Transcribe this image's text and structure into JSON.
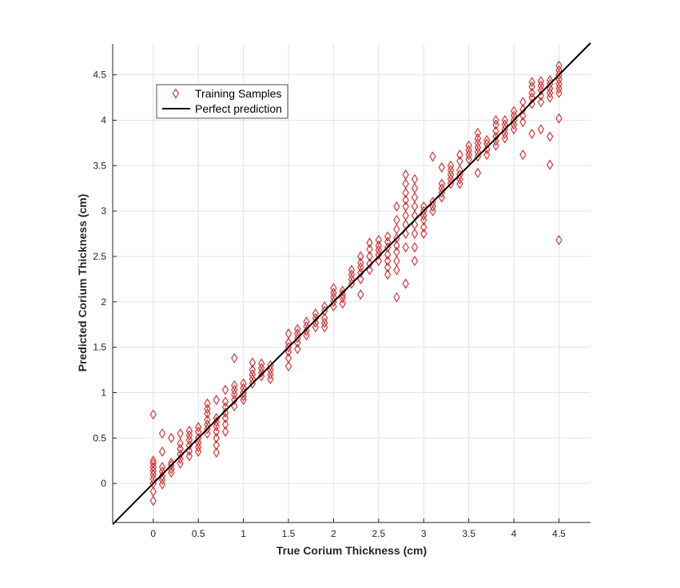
{
  "chart_data": {
    "type": "scatter",
    "title": "",
    "xlabel": "True Corium Thickness (cm)",
    "ylabel": "Predicted Corium Thickness (cm)",
    "xlim": [
      -0.45,
      4.85
    ],
    "ylim": [
      -0.43,
      4.84
    ],
    "xticks": [
      0,
      0.5,
      1,
      1.5,
      2,
      2.5,
      3,
      3.5,
      4,
      4.5
    ],
    "yticks": [
      0,
      0.5,
      1,
      1.5,
      2,
      2.5,
      3,
      3.5,
      4,
      4.5
    ],
    "xtick_labels": [
      "0",
      "0.5",
      "1",
      "1.5",
      "2",
      "2.5",
      "3",
      "3.5",
      "4",
      "4.5"
    ],
    "ytick_labels": [
      "0",
      "0.5",
      "1",
      "1.5",
      "2",
      "2.5",
      "3",
      "3.5",
      "4",
      "4.5"
    ],
    "grid": true,
    "legend_position": "top-left",
    "colors": {
      "samples": "#d62728",
      "line": "#000000",
      "grid": "#e3e3e3",
      "axis": "#262626"
    },
    "series": [
      {
        "name": "Training Samples",
        "marker": "diamond",
        "points": [
          [
            0,
            -0.19
          ],
          [
            0,
            -0.09
          ],
          [
            0,
            0
          ],
          [
            0,
            0.05
          ],
          [
            0,
            0.1
          ],
          [
            0,
            0.14
          ],
          [
            0,
            0.18
          ],
          [
            0,
            0.22
          ],
          [
            0,
            0.25
          ],
          [
            0,
            0.76
          ],
          [
            0.1,
            -0.01
          ],
          [
            0.1,
            0.04
          ],
          [
            0.1,
            0.08
          ],
          [
            0.1,
            0.13
          ],
          [
            0.1,
            0.18
          ],
          [
            0.1,
            0.35
          ],
          [
            0.1,
            0.55
          ],
          [
            0.2,
            0.12
          ],
          [
            0.2,
            0.16
          ],
          [
            0.2,
            0.2
          ],
          [
            0.2,
            0.23
          ],
          [
            0.2,
            0.5
          ],
          [
            0.3,
            0.22
          ],
          [
            0.3,
            0.27
          ],
          [
            0.3,
            0.32
          ],
          [
            0.3,
            0.38
          ],
          [
            0.3,
            0.44
          ],
          [
            0.3,
            0.55
          ],
          [
            0.4,
            0.3
          ],
          [
            0.4,
            0.36
          ],
          [
            0.4,
            0.42
          ],
          [
            0.4,
            0.48
          ],
          [
            0.4,
            0.53
          ],
          [
            0.4,
            0.58
          ],
          [
            0.5,
            0.35
          ],
          [
            0.5,
            0.4
          ],
          [
            0.5,
            0.45
          ],
          [
            0.5,
            0.5
          ],
          [
            0.5,
            0.57
          ],
          [
            0.5,
            0.62
          ],
          [
            0.6,
            0.55
          ],
          [
            0.6,
            0.6
          ],
          [
            0.6,
            0.65
          ],
          [
            0.6,
            0.7
          ],
          [
            0.6,
            0.77
          ],
          [
            0.6,
            0.82
          ],
          [
            0.6,
            0.88
          ],
          [
            0.7,
            0.34
          ],
          [
            0.7,
            0.42
          ],
          [
            0.7,
            0.5
          ],
          [
            0.7,
            0.57
          ],
          [
            0.7,
            0.63
          ],
          [
            0.7,
            0.68
          ],
          [
            0.7,
            0.72
          ],
          [
            0.7,
            0.92
          ],
          [
            0.8,
            0.57
          ],
          [
            0.8,
            0.65
          ],
          [
            0.8,
            0.72
          ],
          [
            0.8,
            0.78
          ],
          [
            0.8,
            0.84
          ],
          [
            0.8,
            0.9
          ],
          [
            0.8,
            1.03
          ],
          [
            0.9,
            0.85
          ],
          [
            0.9,
            0.92
          ],
          [
            0.9,
            0.98
          ],
          [
            0.9,
            1.03
          ],
          [
            0.9,
            1.08
          ],
          [
            0.9,
            1.38
          ],
          [
            1,
            0.92
          ],
          [
            1,
            0.96
          ],
          [
            1,
            1.0
          ],
          [
            1,
            1.05
          ],
          [
            1,
            1.1
          ],
          [
            1.1,
            1.1
          ],
          [
            1.1,
            1.15
          ],
          [
            1.1,
            1.2
          ],
          [
            1.1,
            1.25
          ],
          [
            1.1,
            1.33
          ],
          [
            1.2,
            1.18
          ],
          [
            1.2,
            1.22
          ],
          [
            1.2,
            1.27
          ],
          [
            1.2,
            1.32
          ],
          [
            1.3,
            1.15
          ],
          [
            1.3,
            1.2
          ],
          [
            1.3,
            1.25
          ],
          [
            1.3,
            1.3
          ],
          [
            1.5,
            1.29
          ],
          [
            1.5,
            1.38
          ],
          [
            1.5,
            1.45
          ],
          [
            1.5,
            1.5
          ],
          [
            1.5,
            1.55
          ],
          [
            1.5,
            1.65
          ],
          [
            1.6,
            1.48
          ],
          [
            1.6,
            1.55
          ],
          [
            1.6,
            1.6
          ],
          [
            1.6,
            1.65
          ],
          [
            1.6,
            1.7
          ],
          [
            1.7,
            1.63
          ],
          [
            1.7,
            1.68
          ],
          [
            1.7,
            1.73
          ],
          [
            1.7,
            1.78
          ],
          [
            1.8,
            1.72
          ],
          [
            1.8,
            1.77
          ],
          [
            1.8,
            1.82
          ],
          [
            1.8,
            1.87
          ],
          [
            1.9,
            1.72
          ],
          [
            1.9,
            1.77
          ],
          [
            1.9,
            1.82
          ],
          [
            1.9,
            1.9
          ],
          [
            1.9,
            1.95
          ],
          [
            2,
            1.95
          ],
          [
            2,
            2.0
          ],
          [
            2,
            2.05
          ],
          [
            2,
            2.1
          ],
          [
            2,
            2.15
          ],
          [
            2.1,
            1.98
          ],
          [
            2.1,
            2.04
          ],
          [
            2.1,
            2.08
          ],
          [
            2.1,
            2.12
          ],
          [
            2.2,
            2.2
          ],
          [
            2.2,
            2.25
          ],
          [
            2.2,
            2.3
          ],
          [
            2.2,
            2.35
          ],
          [
            2.3,
            2.08
          ],
          [
            2.3,
            2.25
          ],
          [
            2.3,
            2.32
          ],
          [
            2.3,
            2.38
          ],
          [
            2.3,
            2.43
          ],
          [
            2.3,
            2.5
          ],
          [
            2.4,
            2.35
          ],
          [
            2.4,
            2.42
          ],
          [
            2.4,
            2.5
          ],
          [
            2.4,
            2.58
          ],
          [
            2.4,
            2.65
          ],
          [
            2.5,
            2.45
          ],
          [
            2.5,
            2.52
          ],
          [
            2.5,
            2.57
          ],
          [
            2.5,
            2.62
          ],
          [
            2.5,
            2.68
          ],
          [
            2.6,
            2.3
          ],
          [
            2.6,
            2.38
          ],
          [
            2.6,
            2.45
          ],
          [
            2.6,
            2.52
          ],
          [
            2.6,
            2.6
          ],
          [
            2.6,
            2.66
          ],
          [
            2.6,
            2.72
          ],
          [
            2.7,
            2.05
          ],
          [
            2.7,
            2.35
          ],
          [
            2.7,
            2.45
          ],
          [
            2.7,
            2.55
          ],
          [
            2.7,
            2.62
          ],
          [
            2.7,
            2.7
          ],
          [
            2.7,
            2.8
          ],
          [
            2.7,
            2.9
          ],
          [
            2.7,
            3.05
          ],
          [
            2.8,
            2.2
          ],
          [
            2.8,
            2.6
          ],
          [
            2.8,
            2.75
          ],
          [
            2.8,
            2.85
          ],
          [
            2.8,
            2.95
          ],
          [
            2.8,
            3.05
          ],
          [
            2.8,
            3.12
          ],
          [
            2.8,
            3.2
          ],
          [
            2.8,
            3.3
          ],
          [
            2.8,
            3.4
          ],
          [
            2.9,
            2.45
          ],
          [
            2.9,
            2.6
          ],
          [
            2.9,
            2.75
          ],
          [
            2.9,
            2.85
          ],
          [
            2.9,
            2.95
          ],
          [
            2.9,
            3.05
          ],
          [
            2.9,
            3.15
          ],
          [
            2.9,
            3.25
          ],
          [
            2.9,
            3.35
          ],
          [
            3,
            2.75
          ],
          [
            3,
            2.82
          ],
          [
            3,
            2.9
          ],
          [
            3,
            2.95
          ],
          [
            3,
            3.0
          ],
          [
            3,
            3.05
          ],
          [
            3.1,
            3.0
          ],
          [
            3.1,
            3.05
          ],
          [
            3.1,
            3.1
          ],
          [
            3.1,
            3.6
          ],
          [
            3.2,
            3.15
          ],
          [
            3.2,
            3.2
          ],
          [
            3.2,
            3.25
          ],
          [
            3.2,
            3.3
          ],
          [
            3.2,
            3.48
          ],
          [
            3.3,
            3.3
          ],
          [
            3.3,
            3.35
          ],
          [
            3.3,
            3.4
          ],
          [
            3.3,
            3.45
          ],
          [
            3.3,
            3.5
          ],
          [
            3.4,
            3.3
          ],
          [
            3.4,
            3.35
          ],
          [
            3.4,
            3.4
          ],
          [
            3.4,
            3.45
          ],
          [
            3.4,
            3.55
          ],
          [
            3.4,
            3.62
          ],
          [
            3.5,
            3.57
          ],
          [
            3.5,
            3.62
          ],
          [
            3.5,
            3.67
          ],
          [
            3.5,
            3.72
          ],
          [
            3.6,
            3.6
          ],
          [
            3.6,
            3.65
          ],
          [
            3.6,
            3.7
          ],
          [
            3.6,
            3.75
          ],
          [
            3.6,
            3.8
          ],
          [
            3.6,
            3.86
          ],
          [
            3.6,
            3.42
          ],
          [
            3.7,
            3.62
          ],
          [
            3.7,
            3.68
          ],
          [
            3.7,
            3.74
          ],
          [
            3.7,
            3.78
          ],
          [
            3.8,
            3.72
          ],
          [
            3.8,
            3.77
          ],
          [
            3.8,
            3.82
          ],
          [
            3.8,
            3.88
          ],
          [
            3.8,
            3.95
          ],
          [
            3.8,
            4.0
          ],
          [
            3.9,
            3.8
          ],
          [
            3.9,
            3.85
          ],
          [
            3.9,
            3.9
          ],
          [
            3.9,
            3.95
          ],
          [
            3.9,
            4.0
          ],
          [
            4,
            3.9
          ],
          [
            4,
            3.95
          ],
          [
            4,
            4.0
          ],
          [
            4,
            4.05
          ],
          [
            4,
            4.1
          ],
          [
            4.1,
            3.62
          ],
          [
            4.1,
            3.98
          ],
          [
            4.1,
            4.05
          ],
          [
            4.1,
            4.12
          ],
          [
            4.1,
            4.2
          ],
          [
            4.2,
            3.85
          ],
          [
            4.2,
            4.18
          ],
          [
            4.2,
            4.25
          ],
          [
            4.2,
            4.3
          ],
          [
            4.2,
            4.37
          ],
          [
            4.2,
            4.42
          ],
          [
            4.3,
            3.9
          ],
          [
            4.3,
            4.2
          ],
          [
            4.3,
            4.27
          ],
          [
            4.3,
            4.33
          ],
          [
            4.3,
            4.38
          ],
          [
            4.3,
            4.43
          ],
          [
            4.4,
            3.51
          ],
          [
            4.4,
            3.82
          ],
          [
            4.4,
            4.25
          ],
          [
            4.4,
            4.3
          ],
          [
            4.4,
            4.35
          ],
          [
            4.4,
            4.4
          ],
          [
            4.4,
            4.44
          ],
          [
            4.5,
            2.68
          ],
          [
            4.5,
            4.02
          ],
          [
            4.5,
            4.3
          ],
          [
            4.5,
            4.35
          ],
          [
            4.5,
            4.4
          ],
          [
            4.5,
            4.45
          ],
          [
            4.5,
            4.5
          ],
          [
            4.5,
            4.55
          ],
          [
            4.5,
            4.6
          ]
        ]
      },
      {
        "name": "Perfect prediction",
        "type": "line",
        "points": [
          [
            -0.45,
            -0.45
          ],
          [
            4.85,
            4.85
          ]
        ]
      }
    ]
  }
}
